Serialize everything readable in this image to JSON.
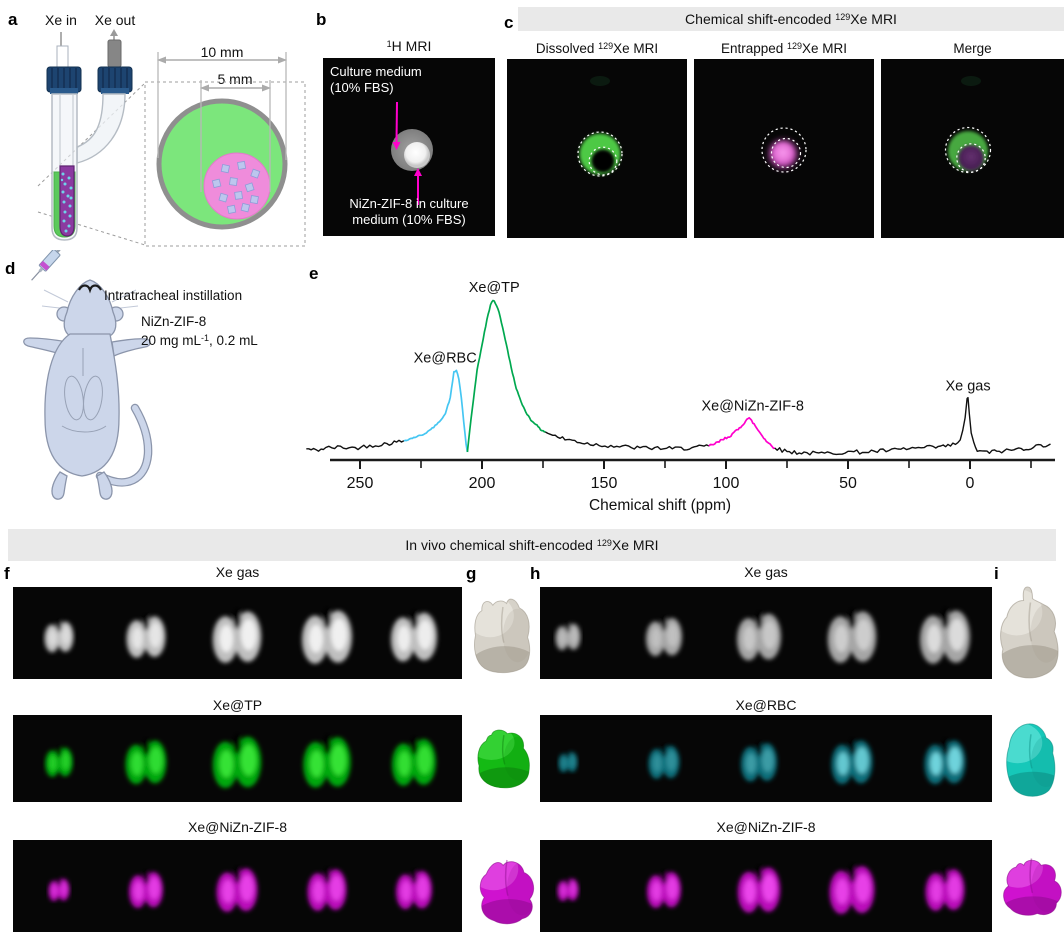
{
  "letters": {
    "a": "a",
    "b": "b",
    "c": "c",
    "d": "d",
    "e": "e",
    "f": "f",
    "g": "g",
    "h": "h",
    "i": "i"
  },
  "panel_a": {
    "xe_in": "Xe in",
    "xe_out": "Xe out",
    "dim_outer": "10 mm",
    "dim_inner": "5 mm"
  },
  "panel_b": {
    "title": {
      "sup": "1",
      "post": "H MRI"
    },
    "annotation_top_line1": "Culture medium",
    "annotation_top_line2": "(10% FBS)",
    "annotation_bottom_line1": "NiZn-ZIF-8 in culture",
    "annotation_bottom_line2": "medium (10% FBS)"
  },
  "panel_c": {
    "header": {
      "pre": "Chemical shift-encoded ",
      "sup": "129",
      "post": "Xe MRI"
    },
    "subtitles": [
      {
        "pre": "Dissolved ",
        "sup": "129",
        "post": "Xe MRI"
      },
      {
        "pre": "Entrapped ",
        "sup": "129",
        "post": "Xe MRI"
      },
      {
        "pre": "Merge"
      }
    ]
  },
  "panel_d": {
    "instillation": "Intratracheal instillation",
    "agent": "NiZn-ZIF-8",
    "dose": {
      "pre": "20 mg mL",
      "sup": "-1",
      "post": ", 0.2 mL"
    }
  },
  "invivo_header": {
    "pre": "In vivo chemical shift-encoded ",
    "sup": "129",
    "post": "Xe MRI"
  },
  "panel_f": {
    "rows": [
      {
        "label": "Xe gas",
        "color": "gray",
        "slice_scales": [
          0.58,
          0.78,
          0.97,
          1.0,
          0.92
        ],
        "hot_levels": [
          0.5,
          0.7,
          0.9,
          0.9,
          0.85
        ]
      },
      {
        "label": "Xe@TP",
        "color": "green",
        "slice_scales": [
          0.55,
          0.82,
          0.97,
          0.95,
          0.88
        ],
        "hot_levels": [
          0.6,
          0.8,
          0.9,
          0.9,
          0.85
        ]
      },
      {
        "label": "Xe@NiZn-ZIF-8",
        "color": "magenta",
        "slice_scales": [
          0.42,
          0.68,
          0.82,
          0.78,
          0.72
        ],
        "hot_levels": [
          0.5,
          0.7,
          0.8,
          0.75,
          0.7
        ]
      }
    ]
  },
  "panel_h": {
    "rows": [
      {
        "label": "Xe gas",
        "color": "gray_dim",
        "slice_scales": [
          0.5,
          0.72,
          0.88,
          0.97,
          1.0
        ],
        "hot_levels": [
          0.3,
          0.4,
          0.5,
          0.6,
          0.8
        ]
      },
      {
        "label": "Xe@RBC",
        "color": "teal",
        "slice_scales": [
          0.38,
          0.62,
          0.72,
          0.82,
          0.82
        ],
        "hot_levels": [
          0.15,
          0.25,
          0.35,
          0.7,
          0.8
        ]
      },
      {
        "label": "Xe@NiZn-ZIF-8",
        "color": "magenta",
        "slice_scales": [
          0.42,
          0.68,
          0.85,
          0.9,
          0.78
        ],
        "hot_levels": [
          0.5,
          0.7,
          0.85,
          0.8,
          0.7
        ]
      }
    ]
  },
  "colors": {
    "header_bar": "#e9e9e9",
    "arrow_magenta": "#ff00cc",
    "tube_green": "#5bc95b",
    "tube_purple": "#8b3aa0",
    "circle_green": "#7ce67c",
    "circle_pink": "#ef8cdb",
    "cube_lavender": "#bcc6ee",
    "cap_navy": "#1d4470",
    "rows": {
      "gray": {
        "base": "#bfbfbf",
        "hot": "#f5f5f5"
      },
      "gray_dim": {
        "base": "#a6a6a6",
        "hot": "#e8e8e8"
      },
      "green": {
        "base": "#00a80a",
        "hot": "#3ae83a"
      },
      "magenta": {
        "base": "#bb10bb",
        "hot": "#f34df3"
      },
      "teal": {
        "base": "#11707c",
        "hot": "#86ecf4"
      }
    },
    "renders3d": {
      "gray": {
        "base": "#d6d2c9",
        "dark": "#9e978a",
        "light": "#f4f2ec"
      },
      "green": {
        "base": "#14ba14",
        "dark": "#0b7d0b",
        "light": "#52e852"
      },
      "cyan": {
        "base": "#16c8b9",
        "dark": "#0d8d82",
        "light": "#7deee6"
      },
      "magenta": {
        "base": "#cf12cf",
        "dark": "#8e0a8e",
        "light": "#ef6bef"
      }
    }
  },
  "chart_data": {
    "type": "line",
    "title": "",
    "xlabel": "Chemical shift (ppm)",
    "ylabel": "",
    "x_axis_reversed": true,
    "x_range": [
      272,
      -33
    ],
    "x_ticks_major": [
      250,
      200,
      150,
      100,
      50,
      0
    ],
    "x_ticks_minor": [
      225,
      175,
      125,
      75,
      25,
      -25
    ],
    "grid": false,
    "peaks": [
      {
        "label": "Xe@RBC",
        "ppm": 211,
        "rel_height": 0.56,
        "color": "#45c6f2",
        "label_dx": -10
      },
      {
        "label": "Xe@TP",
        "ppm": 195,
        "rel_height": 1.0,
        "color": "#00a84f",
        "label_dx": 0
      },
      {
        "label": "Xe@NiZn-ZIF-8",
        "ppm": 91.5,
        "rel_height": 0.26,
        "color": "#ff00cc",
        "label_dx": 6
      },
      {
        "label": "Xe gas",
        "ppm": 0.8,
        "rel_height": 0.385,
        "color": "#111111",
        "label_dx": 0
      }
    ],
    "segments": [
      {
        "color": "#111111",
        "noise": 0.013,
        "points": [
          [
            272,
            0.07
          ],
          [
            268,
            0.06
          ],
          [
            264,
            0.075
          ],
          [
            258,
            0.08
          ],
          [
            252,
            0.075
          ],
          [
            246,
            0.09
          ],
          [
            240,
            0.1
          ],
          [
            236,
            0.11
          ],
          [
            232,
            0.12
          ]
        ]
      },
      {
        "color": "#45c6f2",
        "noise": 0.004,
        "points": [
          [
            232,
            0.12
          ],
          [
            228,
            0.14
          ],
          [
            224,
            0.16
          ],
          [
            221,
            0.19
          ],
          [
            218,
            0.23
          ],
          [
            215,
            0.29
          ],
          [
            213,
            0.39
          ],
          [
            211.5,
            0.55
          ],
          [
            210.5,
            0.56
          ],
          [
            209.5,
            0.51
          ],
          [
            208.5,
            0.39
          ],
          [
            207.5,
            0.24
          ],
          [
            206.5,
            0.1
          ],
          [
            206,
            0.05
          ]
        ]
      },
      {
        "color": "#00a84f",
        "noise": 0.004,
        "points": [
          [
            206,
            0.05
          ],
          [
            205,
            0.19
          ],
          [
            203.5,
            0.38
          ],
          [
            202,
            0.56
          ],
          [
            200,
            0.72
          ],
          [
            198,
            0.875
          ],
          [
            196.5,
            0.97
          ],
          [
            195.5,
            1.0
          ],
          [
            194.5,
            0.98
          ],
          [
            193,
            0.925
          ],
          [
            191.5,
            0.825
          ],
          [
            190,
            0.72
          ],
          [
            188,
            0.575
          ],
          [
            186,
            0.45
          ],
          [
            184,
            0.3625
          ],
          [
            182,
            0.3
          ],
          [
            180,
            0.25
          ],
          [
            178,
            0.225
          ],
          [
            176,
            0.19
          ],
          [
            174,
            0.175
          ]
        ]
      },
      {
        "color": "#111111",
        "noise": 0.013,
        "points": [
          [
            174,
            0.175
          ],
          [
            170,
            0.15
          ],
          [
            166,
            0.13
          ],
          [
            162,
            0.12
          ],
          [
            158,
            0.105
          ],
          [
            152,
            0.095
          ],
          [
            146,
            0.0875
          ],
          [
            140,
            0.08
          ],
          [
            134,
            0.075
          ],
          [
            128,
            0.075
          ],
          [
            122,
            0.07
          ],
          [
            116,
            0.075
          ],
          [
            111,
            0.08
          ],
          [
            107,
            0.0875
          ]
        ]
      },
      {
        "color": "#ff00cc",
        "noise": 0.008,
        "points": [
          [
            107,
            0.0875
          ],
          [
            104,
            0.105
          ],
          [
            101,
            0.13
          ],
          [
            98,
            0.155
          ],
          [
            95,
            0.19
          ],
          [
            93,
            0.225
          ],
          [
            91.5,
            0.255
          ],
          [
            90.5,
            0.26
          ],
          [
            89,
            0.235
          ],
          [
            87,
            0.19
          ],
          [
            85,
            0.15
          ],
          [
            83,
            0.11
          ],
          [
            81,
            0.0875
          ],
          [
            80,
            0.075
          ]
        ]
      },
      {
        "color": "#111111",
        "noise": 0.013,
        "points": [
          [
            80,
            0.075
          ],
          [
            77,
            0.06
          ],
          [
            73,
            0.05
          ],
          [
            68,
            0.045
          ],
          [
            62,
            0.04
          ],
          [
            56,
            0.045
          ],
          [
            50,
            0.05
          ],
          [
            44,
            0.05
          ],
          [
            38,
            0.055
          ],
          [
            32,
            0.06
          ],
          [
            26,
            0.07
          ],
          [
            20,
            0.075
          ],
          [
            14,
            0.08
          ],
          [
            9,
            0.0875
          ],
          [
            6,
            0.1
          ],
          [
            4,
            0.125
          ],
          [
            3,
            0.175
          ],
          [
            2,
            0.26
          ],
          [
            1.2,
            0.375
          ],
          [
            0.8,
            0.385
          ],
          [
            0.3,
            0.3
          ],
          [
            -0.5,
            0.175
          ],
          [
            -1.5,
            0.1
          ],
          [
            -3,
            0.06
          ],
          [
            -5,
            0.05
          ],
          [
            -8,
            0.05
          ],
          [
            -12,
            0.055
          ],
          [
            -16,
            0.06
          ],
          [
            -20,
            0.07
          ],
          [
            -24,
            0.075
          ],
          [
            -28,
            0.0875
          ],
          [
            -33,
            0.1
          ]
        ]
      }
    ]
  }
}
